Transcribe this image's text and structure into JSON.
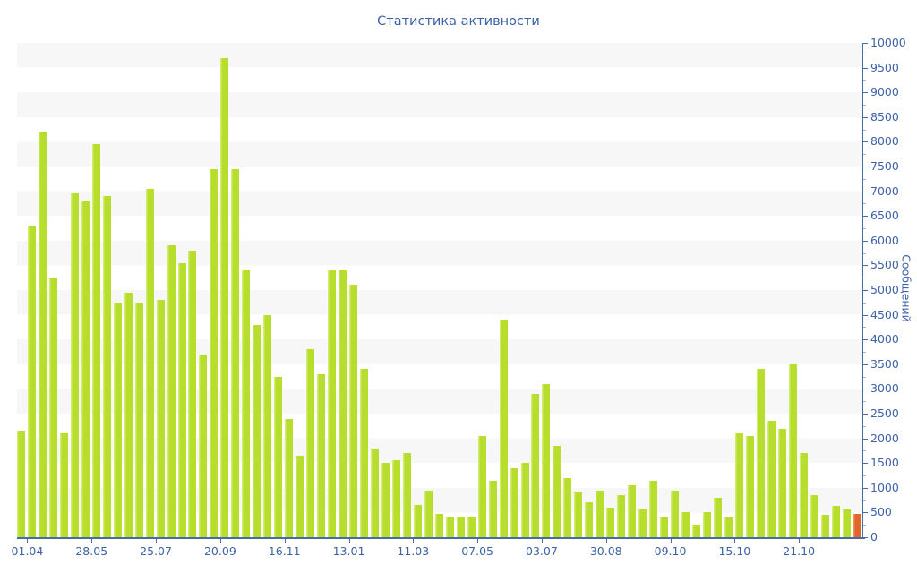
{
  "chart_data": {
    "type": "bar",
    "title": "Статистика активности",
    "ylabel": "Сообщений",
    "ylim": [
      0,
      10000
    ],
    "ytick_step": 500,
    "ytick_minor_step": 250,
    "grid": "alternating horizontal stripes every 500 units",
    "legend_position": "none",
    "bar_color": "#b7dd2d",
    "bar_edge_color": "#d2ec6e",
    "highlight_bar_color": "#e2662b",
    "highlight_bar_edge_color": "#f29054",
    "highlight_last_bar": true,
    "axis_color": "#4a6aa8",
    "text_color": "#3d62a8",
    "stripe_color": "#f7f7f7",
    "xticks": [
      {
        "label": "01.04",
        "after_bar": 1
      },
      {
        "label": "28.05",
        "after_bar": 7
      },
      {
        "label": "25.07",
        "after_bar": 13
      },
      {
        "label": "20.09",
        "after_bar": 19
      },
      {
        "label": "16.11",
        "after_bar": 25
      },
      {
        "label": "13.01",
        "after_bar": 31
      },
      {
        "label": "11.03",
        "after_bar": 37
      },
      {
        "label": "07.05",
        "after_bar": 43
      },
      {
        "label": "03.07",
        "after_bar": 49
      },
      {
        "label": "30.08",
        "after_bar": 55
      },
      {
        "label": "09.10",
        "after_bar": 61
      },
      {
        "label": "15.10",
        "after_bar": 67
      },
      {
        "label": "21.10",
        "after_bar": 73
      }
    ],
    "values": [
      2150,
      6300,
      8200,
      5250,
      2100,
      6950,
      6800,
      7950,
      6900,
      4750,
      4950,
      4750,
      7050,
      4800,
      5900,
      5550,
      5800,
      3700,
      7450,
      9700,
      7450,
      5400,
      4300,
      4500,
      3250,
      2400,
      1650,
      3800,
      3300,
      5400,
      5400,
      5100,
      3400,
      1800,
      1500,
      1550,
      1700,
      650,
      950,
      480,
      400,
      400,
      420,
      2050,
      1150,
      4400,
      1400,
      1500,
      2900,
      3100,
      1850,
      1200,
      900,
      700,
      950,
      600,
      850,
      1050,
      560,
      1150,
      400,
      950,
      500,
      250,
      500,
      800,
      400,
      2100,
      2050,
      3400,
      2350,
      2200,
      3500,
      1700,
      850,
      450,
      640,
      560,
      480
    ]
  }
}
